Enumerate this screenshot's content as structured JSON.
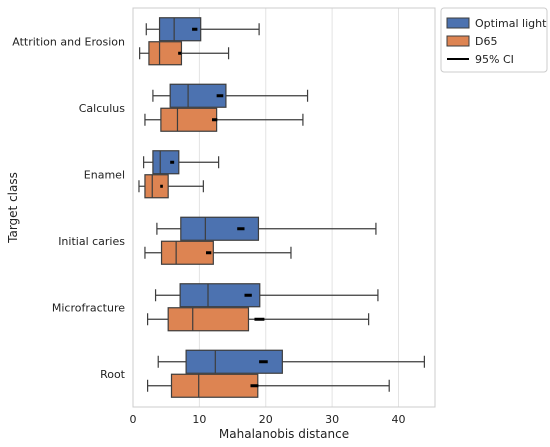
{
  "chart_data": {
    "type": "boxplot",
    "orientation": "horizontal",
    "xlabel": "Mahalanobis distance",
    "ylabel": "Target class",
    "xlim": [
      0,
      45.5
    ],
    "xticks": [
      0,
      10,
      20,
      30,
      40
    ],
    "grid": "vertical",
    "legend_position": "top-right",
    "legend": [
      {
        "name": "Optimal light",
        "kind": "box",
        "color": "#4c72b0"
      },
      {
        "name": "D65",
        "kind": "box",
        "color": "#dd8452"
      },
      {
        "name": "95% CI",
        "kind": "line",
        "color": "#000000"
      }
    ],
    "categories": [
      "Attrition and Erosion",
      "Calculus",
      "Enamel",
      "Initial caries",
      "Microfracture",
      "Root"
    ],
    "series": [
      {
        "name": "Optimal light",
        "color": "#4c72b0",
        "boxes": [
          {
            "whisker_low": 2.0,
            "q1": 4.0,
            "median": 6.2,
            "q3": 10.2,
            "whisker_high": 19.0,
            "mean": 9.3,
            "ci": [
              8.9,
              9.7
            ]
          },
          {
            "whisker_low": 3.0,
            "q1": 5.6,
            "median": 8.3,
            "q3": 14.0,
            "whisker_high": 26.3,
            "mean": 13.1,
            "ci": [
              12.6,
              13.6
            ]
          },
          {
            "whisker_low": 1.6,
            "q1": 3.0,
            "median": 4.1,
            "q3": 6.9,
            "whisker_high": 12.9,
            "mean": 5.9,
            "ci": [
              5.6,
              6.2
            ]
          },
          {
            "whisker_low": 3.6,
            "q1": 7.2,
            "median": 10.9,
            "q3": 18.9,
            "whisker_high": 36.6,
            "mean": 16.2,
            "ci": [
              15.7,
              16.8
            ]
          },
          {
            "whisker_low": 3.4,
            "q1": 7.1,
            "median": 11.3,
            "q3": 19.1,
            "whisker_high": 36.9,
            "mean": 17.3,
            "ci": [
              16.8,
              17.9
            ]
          },
          {
            "whisker_low": 3.8,
            "q1": 8.0,
            "median": 12.4,
            "q3": 22.5,
            "whisker_high": 43.9,
            "mean": 19.6,
            "ci": [
              19.0,
              20.3
            ]
          }
        ]
      },
      {
        "name": "D65",
        "color": "#dd8452",
        "boxes": [
          {
            "whisker_low": 1.0,
            "q1": 2.4,
            "median": 4.0,
            "q3": 7.3,
            "whisker_high": 14.4,
            "mean": 7.0,
            "ci": [
              6.8,
              7.3
            ]
          },
          {
            "whisker_low": 1.8,
            "q1": 4.2,
            "median": 6.7,
            "q3": 12.6,
            "whisker_high": 25.6,
            "mean": 12.3,
            "ci": [
              11.9,
              12.7
            ]
          },
          {
            "whisker_low": 0.9,
            "q1": 1.8,
            "median": 2.9,
            "q3": 5.3,
            "whisker_high": 10.6,
            "mean": 4.3,
            "ci": [
              4.1,
              4.5
            ]
          },
          {
            "whisker_low": 1.8,
            "q1": 4.3,
            "median": 6.5,
            "q3": 12.1,
            "whisker_high": 23.8,
            "mean": 11.4,
            "ci": [
              11.0,
              11.8
            ]
          },
          {
            "whisker_low": 2.2,
            "q1": 5.3,
            "median": 9.0,
            "q3": 17.4,
            "whisker_high": 35.5,
            "mean": 18.9,
            "ci": [
              18.3,
              19.8
            ]
          },
          {
            "whisker_low": 2.2,
            "q1": 5.8,
            "median": 9.9,
            "q3": 18.8,
            "whisker_high": 38.6,
            "mean": 18.3,
            "ci": [
              17.7,
              18.9
            ]
          }
        ]
      }
    ]
  }
}
